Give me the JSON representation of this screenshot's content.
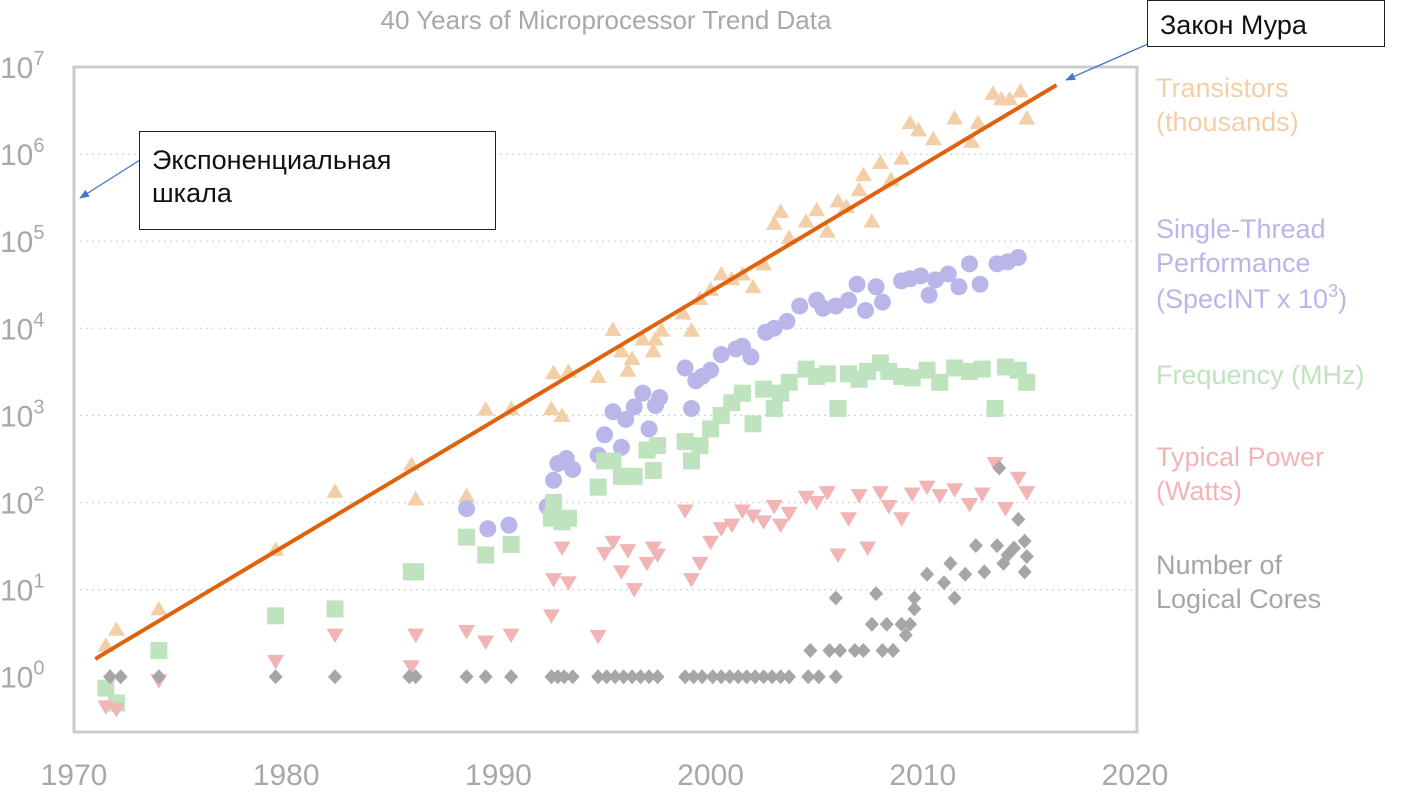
{
  "chart_data": {
    "type": "scatter",
    "title": "40 Years of Microprocessor Trend Data",
    "xlim": [
      1970,
      2020
    ],
    "x_ticks": [
      "1970",
      "1980",
      "1990",
      "2000",
      "2010",
      "2020"
    ],
    "y_scale": "log",
    "ylim_exponent": [
      -0.7,
      7
    ],
    "y_ticks": [
      {
        "base": "10",
        "exp": "0"
      },
      {
        "base": "10",
        "exp": "1"
      },
      {
        "base": "10",
        "exp": "2"
      },
      {
        "base": "10",
        "exp": "3"
      },
      {
        "base": "10",
        "exp": "4"
      },
      {
        "base": "10",
        "exp": "5"
      },
      {
        "base": "10",
        "exp": "6"
      },
      {
        "base": "10",
        "exp": "7"
      }
    ],
    "grid": "dotted horizontal",
    "legend_position": "right",
    "series": [
      {
        "key": "transistors",
        "legend_lines": [
          "Transistors",
          "(thousands)"
        ],
        "marker": "triangle-up",
        "color": "#f3cfa8",
        "points": [
          [
            1971.5,
            2.3
          ],
          [
            1972,
            3.5
          ],
          [
            1974,
            6
          ],
          [
            1979.5,
            29
          ],
          [
            1982.3,
            134
          ],
          [
            1985.9,
            275
          ],
          [
            1986.1,
            110
          ],
          [
            1988.5,
            120
          ],
          [
            1989.4,
            1180
          ],
          [
            1990.6,
            1200
          ],
          [
            1992.5,
            1200
          ],
          [
            1992.6,
            3100
          ],
          [
            1993,
            1000
          ],
          [
            1993.3,
            3200
          ],
          [
            1994.7,
            2800
          ],
          [
            1995.4,
            9700
          ],
          [
            1995.8,
            5500
          ],
          [
            1996.1,
            3300
          ],
          [
            1996.3,
            4500
          ],
          [
            1996.8,
            7500
          ],
          [
            1997.3,
            5500
          ],
          [
            1997.4,
            7500
          ],
          [
            1997.7,
            9500
          ],
          [
            1998.7,
            15000
          ],
          [
            1999.1,
            9500
          ],
          [
            1999.5,
            22000
          ],
          [
            2000,
            28000
          ],
          [
            2000.5,
            42000
          ],
          [
            2001,
            37000
          ],
          [
            2001.5,
            42000
          ],
          [
            2002,
            30000
          ],
          [
            2002.5,
            55000
          ],
          [
            2003,
            160000
          ],
          [
            2003.3,
            220000
          ],
          [
            2003.7,
            110000
          ],
          [
            2004.5,
            170000
          ],
          [
            2005,
            230000
          ],
          [
            2005.5,
            130000
          ],
          [
            2006,
            290000
          ],
          [
            2006.4,
            250000
          ],
          [
            2007,
            390000
          ],
          [
            2007.2,
            580000
          ],
          [
            2007.6,
            170000
          ],
          [
            2008,
            800000
          ],
          [
            2008.5,
            510000
          ],
          [
            2009,
            900000
          ],
          [
            2009.4,
            2300000
          ],
          [
            2009.8,
            1900000
          ],
          [
            2010.5,
            1500000
          ],
          [
            2011.5,
            2600000
          ],
          [
            2012.3,
            1400000
          ],
          [
            2012.6,
            2300000
          ],
          [
            2013.3,
            5000000
          ],
          [
            2013.7,
            4300000
          ],
          [
            2014.1,
            4300000
          ],
          [
            2014.6,
            5300000
          ],
          [
            2014.9,
            2600000
          ]
        ]
      },
      {
        "key": "single_thread",
        "legend_lines": [
          "Single-Thread",
          "Performance"
        ],
        "legend_exp_line": {
          "prefix": "(SpecINT x 10",
          "exp": "3",
          "suffix": ")"
        },
        "marker": "circle",
        "color": "#b9b6ea",
        "points": [
          [
            1988.5,
            85
          ],
          [
            1989.5,
            50
          ],
          [
            1990.5,
            55
          ],
          [
            1992.3,
            90
          ],
          [
            1992.6,
            180
          ],
          [
            1992.8,
            280
          ],
          [
            1993.2,
            320
          ],
          [
            1993.5,
            240
          ],
          [
            1994.7,
            350
          ],
          [
            1995,
            600
          ],
          [
            1995.4,
            1100
          ],
          [
            1995.8,
            430
          ],
          [
            1996,
            900
          ],
          [
            1996.4,
            1250
          ],
          [
            1996.8,
            1800
          ],
          [
            1997.1,
            700
          ],
          [
            1997.4,
            1300
          ],
          [
            1997.6,
            1600
          ],
          [
            1998.8,
            3500
          ],
          [
            1999.1,
            1200
          ],
          [
            1999.3,
            2500
          ],
          [
            1999.6,
            2800
          ],
          [
            2000,
            3300
          ],
          [
            2000.5,
            5000
          ],
          [
            2001.2,
            5800
          ],
          [
            2001.5,
            6200
          ],
          [
            2001.9,
            4700
          ],
          [
            2002.6,
            9000
          ],
          [
            2003,
            10000
          ],
          [
            2003.6,
            12000
          ],
          [
            2004.2,
            18000
          ],
          [
            2005,
            21000
          ],
          [
            2005.3,
            17000
          ],
          [
            2005.9,
            18000
          ],
          [
            2006.5,
            21000
          ],
          [
            2006.9,
            32000
          ],
          [
            2007.3,
            16000
          ],
          [
            2007.8,
            30000
          ],
          [
            2008.1,
            20000
          ],
          [
            2009,
            35000
          ],
          [
            2009.4,
            37000
          ],
          [
            2009.9,
            40000
          ],
          [
            2010.3,
            24000
          ],
          [
            2010.6,
            36000
          ],
          [
            2011.2,
            42000
          ],
          [
            2011.7,
            30000
          ],
          [
            2012.2,
            55000
          ],
          [
            2012.7,
            32000
          ],
          [
            2013.5,
            55000
          ],
          [
            2014,
            58000
          ],
          [
            2014.5,
            65000
          ]
        ]
      },
      {
        "key": "frequency",
        "legend_lines": [
          "Frequency (MHz)"
        ],
        "marker": "square",
        "color": "#bfe3bf",
        "points": [
          [
            1971.5,
            0.74
          ],
          [
            1972,
            0.5
          ],
          [
            1974,
            2
          ],
          [
            1979.5,
            5
          ],
          [
            1982.3,
            6
          ],
          [
            1985.9,
            16
          ],
          [
            1986.1,
            16
          ],
          [
            1988.5,
            40
          ],
          [
            1989.4,
            25
          ],
          [
            1990.6,
            33
          ],
          [
            1992.5,
            66
          ],
          [
            1992.6,
            100
          ],
          [
            1993,
            60
          ],
          [
            1993.3,
            66
          ],
          [
            1994.7,
            150
          ],
          [
            1995,
            300
          ],
          [
            1995.4,
            300
          ],
          [
            1995.8,
            200
          ],
          [
            1996.1,
            200
          ],
          [
            1996.4,
            200
          ],
          [
            1997,
            400
          ],
          [
            1997.3,
            233
          ],
          [
            1997.5,
            450
          ],
          [
            1998.8,
            500
          ],
          [
            1999.1,
            300
          ],
          [
            1999.5,
            450
          ],
          [
            2000,
            700
          ],
          [
            2000.5,
            1000
          ],
          [
            2001,
            1400
          ],
          [
            2001.5,
            1800
          ],
          [
            2002,
            800
          ],
          [
            2002.5,
            2000
          ],
          [
            2003,
            1200
          ],
          [
            2003.3,
            1800
          ],
          [
            2003.7,
            2400
          ],
          [
            2004.5,
            3400
          ],
          [
            2005,
            2800
          ],
          [
            2005.5,
            3000
          ],
          [
            2006,
            1200
          ],
          [
            2006.5,
            3000
          ],
          [
            2007,
            2600
          ],
          [
            2007.4,
            3200
          ],
          [
            2008,
            4000
          ],
          [
            2008.4,
            3200
          ],
          [
            2009,
            2800
          ],
          [
            2009.5,
            2700
          ],
          [
            2010.2,
            3300
          ],
          [
            2010.8,
            2400
          ],
          [
            2011.5,
            3500
          ],
          [
            2012.2,
            3200
          ],
          [
            2012.8,
            3400
          ],
          [
            2013.4,
            1200
          ],
          [
            2013.9,
            3600
          ],
          [
            2014.5,
            3300
          ],
          [
            2014.9,
            2400
          ]
        ]
      },
      {
        "key": "power",
        "legend_lines": [
          "Typical Power",
          "(Watts)"
        ],
        "marker": "triangle-down",
        "color": "#f2b5b5",
        "points": [
          [
            1971.5,
            0.45
          ],
          [
            1972,
            0.42
          ],
          [
            1974,
            0.9
          ],
          [
            1979.5,
            1.5
          ],
          [
            1982.3,
            3
          ],
          [
            1985.9,
            1.3
          ],
          [
            1986.1,
            3
          ],
          [
            1988.5,
            3.3
          ],
          [
            1989.4,
            2.5
          ],
          [
            1990.6,
            3
          ],
          [
            1992.5,
            5
          ],
          [
            1992.6,
            13
          ],
          [
            1993,
            30
          ],
          [
            1993.3,
            12
          ],
          [
            1994.7,
            2.9
          ],
          [
            1995,
            26
          ],
          [
            1995.4,
            35
          ],
          [
            1995.8,
            16
          ],
          [
            1996.1,
            28
          ],
          [
            1996.4,
            10
          ],
          [
            1997,
            20
          ],
          [
            1997.3,
            30
          ],
          [
            1997.5,
            25
          ],
          [
            1998.8,
            80
          ],
          [
            1999.1,
            13
          ],
          [
            1999.5,
            20
          ],
          [
            2000,
            35
          ],
          [
            2000.5,
            50
          ],
          [
            2001,
            55
          ],
          [
            2001.5,
            80
          ],
          [
            2002,
            70
          ],
          [
            2002.5,
            60
          ],
          [
            2003,
            90
          ],
          [
            2003.3,
            55
          ],
          [
            2003.7,
            75
          ],
          [
            2004.5,
            115
          ],
          [
            2005,
            100
          ],
          [
            2005.5,
            130
          ],
          [
            2006,
            25
          ],
          [
            2006.5,
            65
          ],
          [
            2007,
            120
          ],
          [
            2007.4,
            30
          ],
          [
            2008,
            130
          ],
          [
            2008.4,
            90
          ],
          [
            2009,
            65
          ],
          [
            2009.5,
            125
          ],
          [
            2010.2,
            150
          ],
          [
            2010.8,
            120
          ],
          [
            2011.5,
            140
          ],
          [
            2012.2,
            95
          ],
          [
            2012.8,
            125
          ],
          [
            2013.4,
            280
          ],
          [
            2013.9,
            85
          ],
          [
            2014.5,
            190
          ],
          [
            2014.9,
            130
          ]
        ]
      },
      {
        "key": "cores",
        "legend_lines": [
          "Number of",
          "Logical Cores"
        ],
        "marker": "diamond",
        "color": "#a6a6a6",
        "points": [
          [
            1971.7,
            1
          ],
          [
            1972.2,
            1
          ],
          [
            1974,
            1
          ],
          [
            1979.5,
            1
          ],
          [
            1982.3,
            1
          ],
          [
            1985.8,
            1
          ],
          [
            1986.1,
            1
          ],
          [
            1988.5,
            1
          ],
          [
            1989.4,
            1
          ],
          [
            1990.6,
            1
          ],
          [
            1992.5,
            1
          ],
          [
            1992.8,
            1
          ],
          [
            1993.1,
            1
          ],
          [
            1993.5,
            1
          ],
          [
            1994.7,
            1
          ],
          [
            1995.1,
            1
          ],
          [
            1995.5,
            1
          ],
          [
            1995.9,
            1
          ],
          [
            1996.3,
            1
          ],
          [
            1996.7,
            1
          ],
          [
            1997.1,
            1
          ],
          [
            1997.5,
            1
          ],
          [
            1998.8,
            1
          ],
          [
            1999.2,
            1
          ],
          [
            1999.6,
            1
          ],
          [
            2000.1,
            1
          ],
          [
            2000.5,
            1
          ],
          [
            2000.9,
            1
          ],
          [
            2001.3,
            1
          ],
          [
            2001.7,
            1
          ],
          [
            2002.1,
            1
          ],
          [
            2002.5,
            1
          ],
          [
            2002.9,
            1
          ],
          [
            2003.3,
            1
          ],
          [
            2003.7,
            1
          ],
          [
            2004.6,
            1
          ],
          [
            2004.7,
            2
          ],
          [
            2005.1,
            1
          ],
          [
            2005.6,
            2
          ],
          [
            2005.9,
            1
          ],
          [
            2005.9,
            8
          ],
          [
            2006.1,
            2
          ],
          [
            2006.8,
            2
          ],
          [
            2007.2,
            2
          ],
          [
            2007.6,
            4
          ],
          [
            2007.8,
            9
          ],
          [
            2008.1,
            2
          ],
          [
            2008.3,
            4
          ],
          [
            2008.6,
            2
          ],
          [
            2009,
            4
          ],
          [
            2009.2,
            3
          ],
          [
            2009.4,
            4
          ],
          [
            2009.6,
            6
          ],
          [
            2009.6,
            8
          ],
          [
            2010.2,
            15
          ],
          [
            2011,
            12
          ],
          [
            2011.3,
            20
          ],
          [
            2011.5,
            8
          ],
          [
            2012,
            15
          ],
          [
            2012.5,
            32
          ],
          [
            2012.9,
            16
          ],
          [
            2013.5,
            32
          ],
          [
            2013.6,
            250
          ],
          [
            2013.8,
            20
          ],
          [
            2014,
            25
          ],
          [
            2014.3,
            30
          ],
          [
            2014.5,
            64
          ],
          [
            2014.8,
            36
          ],
          [
            2014.9,
            24
          ],
          [
            2014.8,
            16
          ]
        ]
      }
    ],
    "trend_line": {
      "color": "#e0620d",
      "points": [
        [
          1971,
          1.6
        ],
        [
          2016.3,
          6200000
        ]
      ]
    }
  },
  "annotations": {
    "moore": {
      "label": "Закон Мура",
      "color": "#4a76c4"
    },
    "log_scale": {
      "lines": [
        "Экспоненциальная",
        "шкала"
      ],
      "color": "#4a76c4"
    }
  }
}
